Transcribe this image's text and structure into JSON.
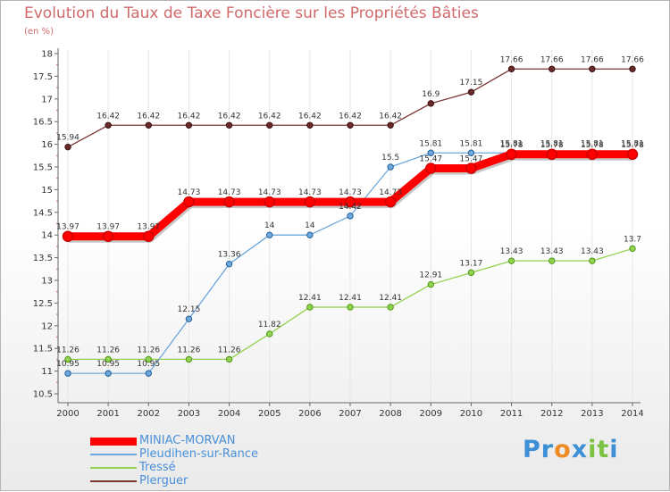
{
  "header": {
    "title": "Evolution du Taux de Taxe Foncière sur les Propriétés Bâties",
    "subtitle": "(en %)"
  },
  "logo": {
    "text": "Proxiti",
    "letters": [
      "P",
      "r",
      "o",
      "x",
      "i",
      "t",
      "i"
    ],
    "colors": [
      "#3d8fd6",
      "#3d8fd6",
      "#f08a24",
      "#3d8fd6",
      "#7cc242",
      "#7cc242",
      "#3d8fd6"
    ]
  },
  "chart_data": {
    "type": "line",
    "title": "Evolution du Taux de Taxe Foncière sur les Propriétés Bâties",
    "ylabel": "(en %)",
    "xlabel": "",
    "ylim": [
      10.5,
      18
    ],
    "y_ticks": [
      "10.5",
      "11",
      "11.5",
      "12",
      "12.5",
      "13",
      "13.5",
      "14",
      "14.5",
      "15",
      "15.5",
      "16",
      "16.5",
      "17",
      "17.5",
      "18"
    ],
    "categories": [
      "2000",
      "2001",
      "2002",
      "2003",
      "2004",
      "2005",
      "2006",
      "2007",
      "2008",
      "2009",
      "2010",
      "2011",
      "2012",
      "2013",
      "2014"
    ],
    "legend_position": "bottom-left",
    "series": [
      {
        "name": "MINIAC-MORVAN",
        "color": "#ff0000",
        "values": [
          13.97,
          13.97,
          13.97,
          14.73,
          14.73,
          14.73,
          14.73,
          14.73,
          14.73,
          15.47,
          15.47,
          15.78,
          15.78,
          15.78,
          15.78
        ],
        "labels": [
          "13.97",
          "13.97",
          "13.97",
          "14.73",
          "14.73",
          "14.73",
          "14.73",
          "14.73",
          "14.73",
          "15.47",
          "15.47",
          "15.78",
          "15.78",
          "15.78",
          "15.78"
        ]
      },
      {
        "name": "Pleudihen-sur-Rance",
        "color": "#6fa8dc",
        "values": [
          10.95,
          10.95,
          10.95,
          12.15,
          13.36,
          14,
          14,
          14.42,
          15.5,
          15.81,
          15.81,
          15.81,
          15.81,
          15.81,
          15.81
        ],
        "labels": [
          "10.95",
          "10.95",
          "10.95",
          "12.15",
          "13.36",
          "14",
          "14",
          "14.42",
          "15.5",
          "15.81",
          "15.81",
          "15.81",
          "15.81",
          "15.81",
          "15.81"
        ]
      },
      {
        "name": "Tressé",
        "color": "#93d150",
        "values": [
          11.26,
          11.26,
          11.26,
          11.26,
          11.26,
          11.82,
          12.41,
          12.41,
          12.41,
          12.91,
          13.17,
          13.43,
          13.43,
          13.43,
          13.7
        ],
        "labels": [
          "11.26",
          "11.26",
          "11.26",
          "11.26",
          "11.26",
          "11.82",
          "12.41",
          "12.41",
          "12.41",
          "12.91",
          "13.17",
          "13.43",
          "13.43",
          "13.43",
          "13.7"
        ]
      },
      {
        "name": "Plerguer",
        "color": "#7a3535",
        "values": [
          15.94,
          16.42,
          16.42,
          16.42,
          16.42,
          16.42,
          16.42,
          16.42,
          16.42,
          16.9,
          17.15,
          17.66,
          17.66,
          17.66,
          17.66
        ],
        "labels": [
          "15.94",
          "16.42",
          "16.42",
          "16.42",
          "16.42",
          "16.42",
          "16.42",
          "16.42",
          "16.42",
          "16.9",
          "17.15",
          "17.66",
          "17.66",
          "17.66",
          "17.66"
        ]
      }
    ]
  }
}
